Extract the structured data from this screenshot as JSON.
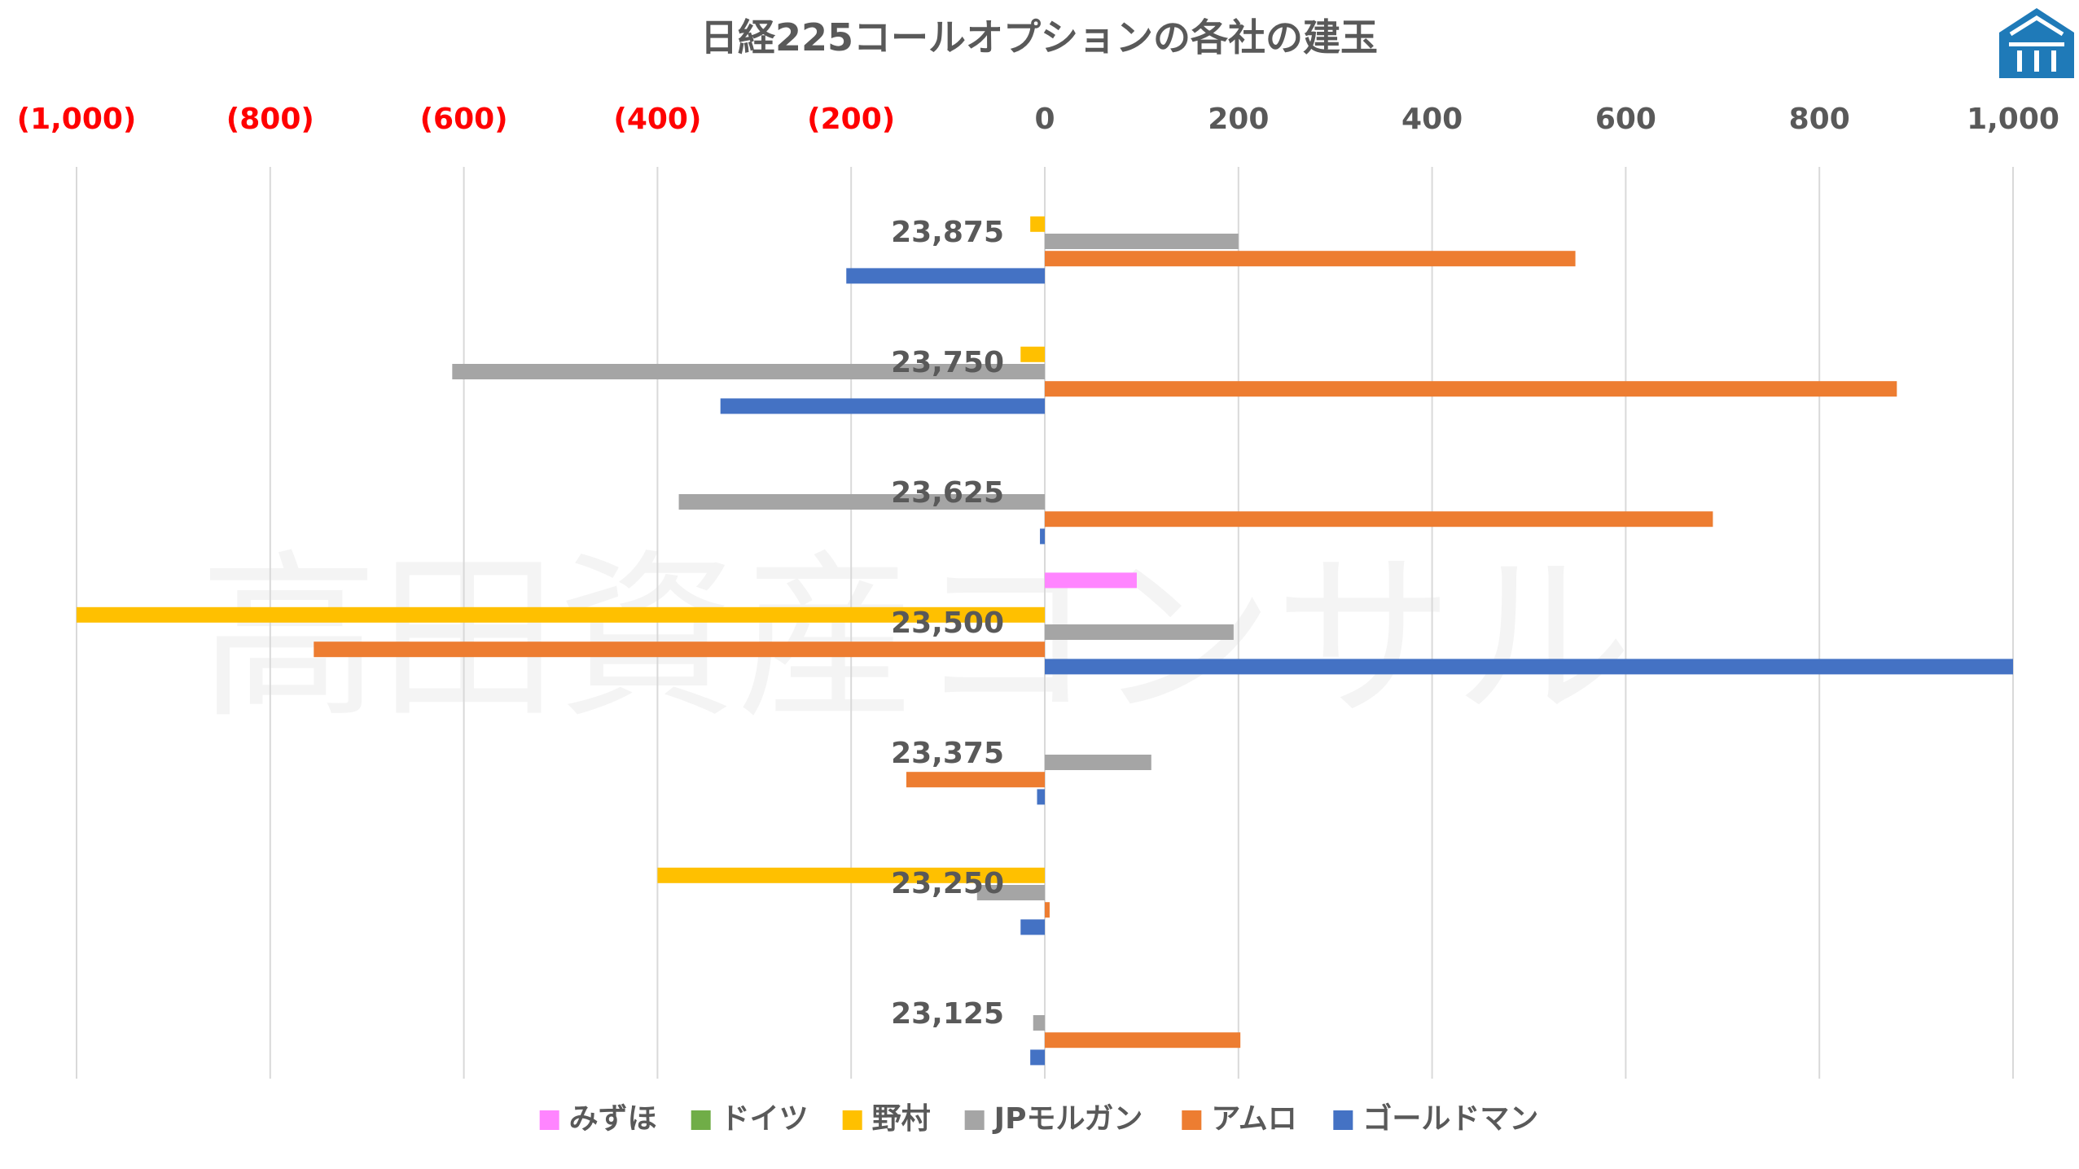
{
  "chart_data": {
    "type": "bar",
    "orientation": "horizontal",
    "title": "日経225コールオプションの各社の建玉",
    "categories": [
      "23,875",
      "23,750",
      "23,625",
      "23,500",
      "23,375",
      "23,250",
      "23,125"
    ],
    "xlim": [
      -1000,
      1000
    ],
    "x_ticks": [
      "(1,000)",
      "(800)",
      "(600)",
      "(400)",
      "(200)",
      "0",
      "200",
      "400",
      "600",
      "800",
      "1,000"
    ],
    "x_tick_values": [
      -1000,
      -800,
      -600,
      -400,
      -200,
      0,
      200,
      400,
      600,
      800,
      1000
    ],
    "negative_tick_color": "#FF0000",
    "positive_tick_color": "#595959",
    "grid": true,
    "legend_position": "bottom",
    "series": [
      {
        "name": "みずほ",
        "color": "#FF85FF",
        "values": [
          0,
          0,
          0,
          95,
          0,
          0,
          0
        ]
      },
      {
        "name": "ドイツ",
        "color": "#70AD47",
        "values": [
          0,
          0,
          0,
          0,
          0,
          0,
          0
        ]
      },
      {
        "name": "野村",
        "color": "#FFC000",
        "values": [
          -15,
          -25,
          0,
          -1000,
          0,
          -400,
          0
        ]
      },
      {
        "name": "JPモルガン",
        "color": "#A5A5A5",
        "values": [
          200,
          -612,
          -378,
          195,
          110,
          -70,
          -12
        ]
      },
      {
        "name": "アムロ",
        "color": "#ED7D31",
        "values": [
          548,
          880,
          690,
          -755,
          -143,
          5,
          202
        ]
      },
      {
        "name": "ゴールドマン",
        "color": "#4472C4",
        "values": [
          -205,
          -335,
          -5,
          1000,
          -8,
          -25,
          -15
        ]
      }
    ]
  },
  "watermark": "高田資産コンサル",
  "logo": {
    "name": "building-logo",
    "color": "#1F7AB8"
  }
}
